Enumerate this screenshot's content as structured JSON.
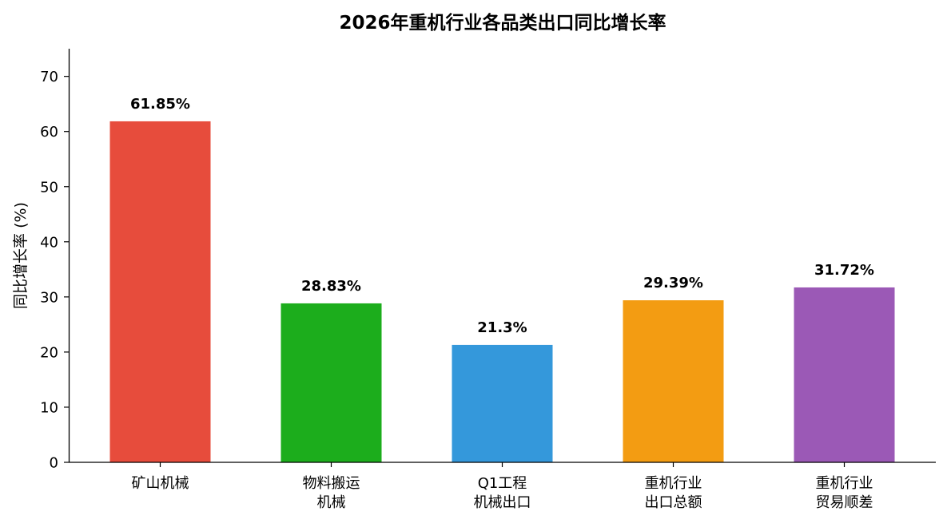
{
  "chart_data": {
    "type": "bar",
    "title": "2026年重机行业各品类出口同比增长率",
    "xlabel": "",
    "ylabel": "同比增长率 (%)",
    "ylim": [
      0,
      75
    ],
    "yticks": [
      0,
      10,
      20,
      30,
      40,
      50,
      60,
      70
    ],
    "grid": false,
    "legend": "none",
    "categories": [
      [
        "矿山机械"
      ],
      [
        "物料搬运",
        "机械"
      ],
      [
        "Q1工程",
        "机械出口"
      ],
      [
        "重机行业",
        "出口总额"
      ],
      [
        "重机行业",
        "贸易顺差"
      ]
    ],
    "values": [
      61.85,
      28.83,
      21.3,
      29.39,
      31.72
    ],
    "value_labels": [
      "61.85%",
      "28.83%",
      "21.3%",
      "29.39%",
      "31.72%"
    ],
    "colors": [
      "#E74C3C",
      "#1CAD1C",
      "#3498DB",
      "#F39C12",
      "#9B59B6"
    ]
  }
}
